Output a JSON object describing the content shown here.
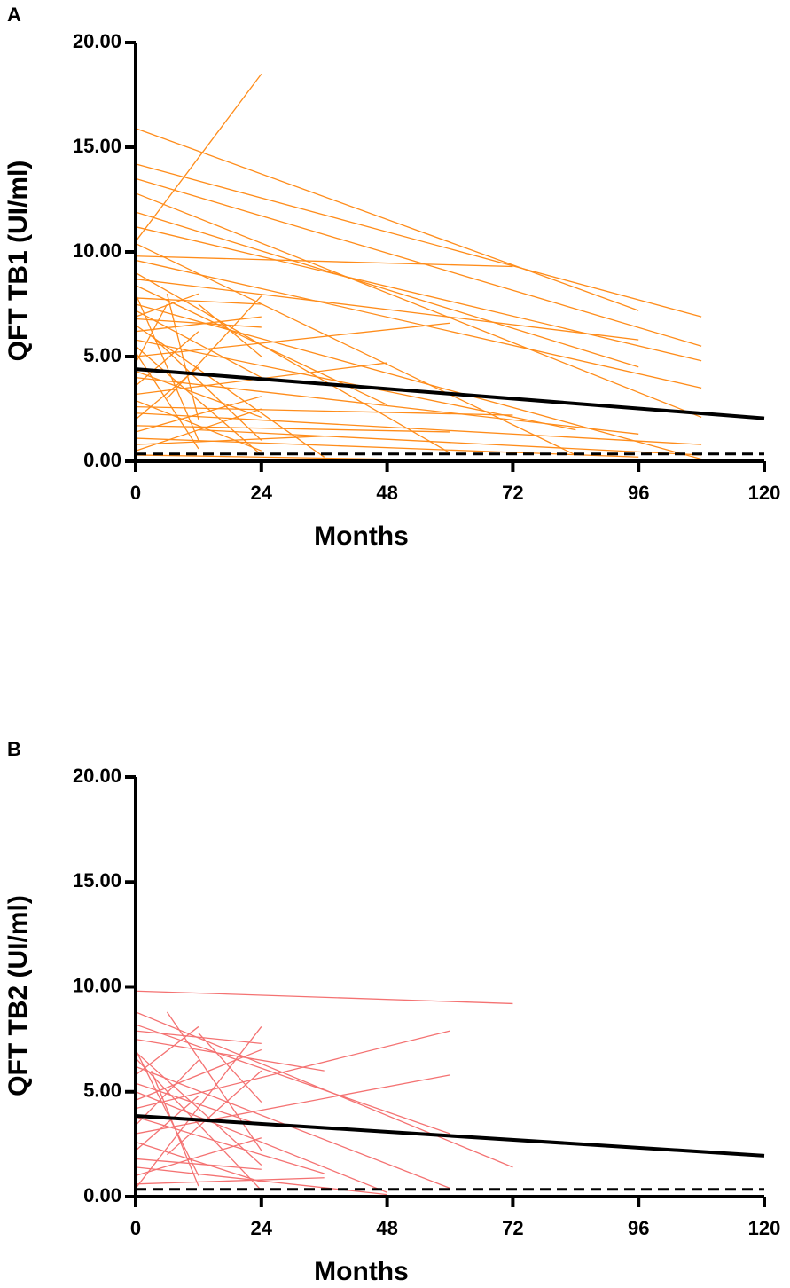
{
  "chart_data": [
    {
      "type": "line",
      "panel_label": "A",
      "y_label": "QFT TB1 (UI/ml)",
      "x_label": "Months",
      "xlim": [
        0,
        120
      ],
      "ylim": [
        0,
        20
      ],
      "xticks": [
        0,
        24,
        48,
        72,
        96,
        120
      ],
      "yticks": [
        {
          "value": 0,
          "label": "0.00"
        },
        {
          "value": 5,
          "label": "5.00"
        },
        {
          "value": 10,
          "label": "10.00"
        },
        {
          "value": 15,
          "label": "15.00"
        },
        {
          "value": 20,
          "label": "20.00"
        }
      ],
      "color": "#ff8c1a",
      "series": [
        {
          "x": [
            0,
            96
          ],
          "values": [
            15.9,
            7.2
          ]
        },
        {
          "x": [
            0,
            108
          ],
          "values": [
            14.2,
            6.9
          ]
        },
        {
          "x": [
            0,
            108
          ],
          "values": [
            13.5,
            5.5
          ]
        },
        {
          "x": [
            0,
            108
          ],
          "values": [
            12.8,
            2.1
          ]
        },
        {
          "x": [
            0,
            96
          ],
          "values": [
            11.9,
            4.5
          ]
        },
        {
          "x": [
            0,
            108
          ],
          "values": [
            11.2,
            4.8
          ]
        },
        {
          "x": [
            0,
            24
          ],
          "values": [
            10.5,
            18.5
          ]
        },
        {
          "x": [
            0,
            84
          ],
          "values": [
            10.4,
            0.3
          ]
        },
        {
          "x": [
            0,
            72
          ],
          "values": [
            9.8,
            9.3
          ]
        },
        {
          "x": [
            0,
            108
          ],
          "values": [
            9.6,
            3.5
          ]
        },
        {
          "x": [
            0,
            60
          ],
          "values": [
            9.0,
            0.4
          ]
        },
        {
          "x": [
            0,
            96
          ],
          "values": [
            8.7,
            5.8
          ]
        },
        {
          "x": [
            0,
            48
          ],
          "values": [
            8.4,
            2.7
          ]
        },
        {
          "x": [
            0,
            12
          ],
          "values": [
            8.0,
            1.0
          ]
        },
        {
          "x": [
            0,
            24
          ],
          "values": [
            7.8,
            7.5
          ]
        },
        {
          "x": [
            0,
            108
          ],
          "values": [
            7.5,
            0.1
          ]
        },
        {
          "x": [
            0,
            24
          ],
          "values": [
            7.2,
            4.0
          ]
        },
        {
          "x": [
            0,
            12
          ],
          "values": [
            6.9,
            8.0
          ]
        },
        {
          "x": [
            0,
            36
          ],
          "values": [
            6.5,
            0.2
          ]
        },
        {
          "x": [
            0,
            24
          ],
          "values": [
            6.2,
            6.9
          ]
        },
        {
          "x": [
            0,
            84
          ],
          "values": [
            5.8,
            1.5
          ]
        },
        {
          "x": [
            0,
            24
          ],
          "values": [
            5.5,
            0.3
          ]
        },
        {
          "x": [
            0,
            60
          ],
          "values": [
            5.0,
            6.6
          ]
        },
        {
          "x": [
            0,
            6
          ],
          "values": [
            4.7,
            7.5
          ]
        },
        {
          "x": [
            0,
            24
          ],
          "values": [
            4.3,
            2.1
          ]
        },
        {
          "x": [
            0,
            96
          ],
          "values": [
            4.0,
            1.3
          ]
        },
        {
          "x": [
            0,
            12
          ],
          "values": [
            3.6,
            6.2
          ]
        },
        {
          "x": [
            0,
            48
          ],
          "values": [
            3.2,
            4.7
          ]
        },
        {
          "x": [
            0,
            24
          ],
          "values": [
            2.9,
            0.5
          ]
        },
        {
          "x": [
            0,
            72
          ],
          "values": [
            2.6,
            2.2
          ]
        },
        {
          "x": [
            0,
            108
          ],
          "values": [
            2.3,
            0.8
          ]
        },
        {
          "x": [
            0,
            12
          ],
          "values": [
            2.0,
            4.5
          ]
        },
        {
          "x": [
            0,
            60
          ],
          "values": [
            1.7,
            1.4
          ]
        },
        {
          "x": [
            0,
            24
          ],
          "values": [
            1.4,
            3.1
          ]
        },
        {
          "x": [
            0,
            96
          ],
          "values": [
            1.1,
            0.2
          ]
        },
        {
          "x": [
            0,
            36
          ],
          "values": [
            0.8,
            1.2
          ]
        },
        {
          "x": [
            0,
            24
          ],
          "values": [
            0.5,
            2.5
          ]
        },
        {
          "x": [
            0,
            48
          ],
          "values": [
            0.3,
            0.1
          ]
        },
        {
          "x": [
            3,
            24
          ],
          "values": [
            6.0,
            1.0
          ]
        },
        {
          "x": [
            6,
            12
          ],
          "values": [
            8.0,
            2.0
          ]
        },
        {
          "x": [
            12,
            24
          ],
          "values": [
            7.5,
            5.0
          ]
        },
        {
          "x": [
            6,
            24
          ],
          "values": [
            3.0,
            7.9
          ]
        },
        {
          "x": [
            12,
            108
          ],
          "values": [
            1.5,
            0.3
          ]
        },
        {
          "x": [
            0,
            12
          ],
          "values": [
            5.2,
            0.6
          ]
        },
        {
          "x": [
            0,
            24
          ],
          "values": [
            6.8,
            6.4
          ]
        }
      ],
      "trend": {
        "x": [
          0,
          120
        ],
        "values": [
          4.4,
          2.05
        ]
      },
      "reference_line": 0.35
    },
    {
      "type": "line",
      "panel_label": "B",
      "y_label": "QFT TB2 (UI/ml)",
      "x_label": "Months",
      "xlim": [
        0,
        120
      ],
      "ylim": [
        0,
        20
      ],
      "xticks": [
        0,
        24,
        48,
        72,
        96,
        120
      ],
      "yticks": [
        {
          "value": 0,
          "label": "0.00"
        },
        {
          "value": 5,
          "label": "5.00"
        },
        {
          "value": 10,
          "label": "10.00"
        },
        {
          "value": 15,
          "label": "15.00"
        },
        {
          "value": 20,
          "label": "20.00"
        }
      ],
      "color": "#f47272",
      "series": [
        {
          "x": [
            0,
            72
          ],
          "values": [
            9.8,
            9.2
          ]
        },
        {
          "x": [
            0,
            72
          ],
          "values": [
            8.8,
            1.4
          ]
        },
        {
          "x": [
            0,
            60
          ],
          "values": [
            8.2,
            3.0
          ]
        },
        {
          "x": [
            0,
            24
          ],
          "values": [
            7.9,
            7.3
          ]
        },
        {
          "x": [
            0,
            36
          ],
          "values": [
            7.5,
            6.0
          ]
        },
        {
          "x": [
            0,
            12
          ],
          "values": [
            7.0,
            1.0
          ]
        },
        {
          "x": [
            0,
            24
          ],
          "values": [
            6.6,
            0.3
          ]
        },
        {
          "x": [
            0,
            60
          ],
          "values": [
            6.2,
            0.4
          ]
        },
        {
          "x": [
            0,
            12
          ],
          "values": [
            5.8,
            8.1
          ]
        },
        {
          "x": [
            0,
            24
          ],
          "values": [
            5.4,
            3.4
          ]
        },
        {
          "x": [
            0,
            48
          ],
          "values": [
            5.0,
            0.2
          ]
        },
        {
          "x": [
            0,
            24
          ],
          "values": [
            4.6,
            7.0
          ]
        },
        {
          "x": [
            0,
            60
          ],
          "values": [
            4.2,
            7.9
          ]
        },
        {
          "x": [
            0,
            36
          ],
          "values": [
            3.8,
            1.1
          ]
        },
        {
          "x": [
            0,
            12
          ],
          "values": [
            3.4,
            6.5
          ]
        },
        {
          "x": [
            0,
            60
          ],
          "values": [
            3.0,
            5.8
          ]
        },
        {
          "x": [
            0,
            24
          ],
          "values": [
            2.6,
            0.7
          ]
        },
        {
          "x": [
            0,
            12
          ],
          "values": [
            2.2,
            4.8
          ]
        },
        {
          "x": [
            0,
            24
          ],
          "values": [
            1.8,
            1.3
          ]
        },
        {
          "x": [
            0,
            48
          ],
          "values": [
            1.4,
            0.1
          ]
        },
        {
          "x": [
            0,
            24
          ],
          "values": [
            1.0,
            2.8
          ]
        },
        {
          "x": [
            0,
            36
          ],
          "values": [
            0.6,
            0.9
          ]
        },
        {
          "x": [
            0,
            24
          ],
          "values": [
            0.4,
            8.1
          ]
        },
        {
          "x": [
            6,
            24
          ],
          "values": [
            8.8,
            2.2
          ]
        },
        {
          "x": [
            3,
            12
          ],
          "values": [
            6.0,
            0.5
          ]
        },
        {
          "x": [
            12,
            24
          ],
          "values": [
            7.8,
            4.5
          ]
        },
        {
          "x": [
            6,
            24
          ],
          "values": [
            2.0,
            6.0
          ]
        },
        {
          "x": [
            0,
            24
          ],
          "values": [
            6.9,
            1.5
          ]
        }
      ],
      "trend": {
        "x": [
          0,
          120
        ],
        "values": [
          3.85,
          1.95
        ]
      },
      "reference_line": 0.35
    }
  ]
}
